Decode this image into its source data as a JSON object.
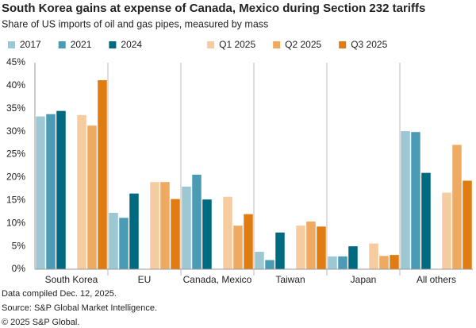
{
  "chart_data": {
    "type": "bar",
    "title": "South Korea gains at expense of Canada, Mexico during Section 232 tariffs",
    "subtitle": "Share of US imports of oil and gas pipes, measured by mass",
    "categories": [
      "South Korea",
      "EU",
      "Canada, Mexico",
      "Taiwan",
      "Japan",
      "All others"
    ],
    "series": [
      {
        "name": "2017",
        "color": "#9cc7d3",
        "values": [
          33.3,
          12.3,
          18.0,
          3.8,
          2.8,
          30.1
        ]
      },
      {
        "name": "2021",
        "color": "#4a9bb3",
        "values": [
          33.8,
          11.2,
          20.6,
          2.0,
          2.8,
          29.9
        ]
      },
      {
        "name": "2024",
        "color": "#006b80",
        "values": [
          34.5,
          16.5,
          15.2,
          8.0,
          5.0,
          21.0
        ]
      },
      {
        "name": "Q1 2025",
        "color": "#f5cb9f",
        "values": [
          33.6,
          19.0,
          15.8,
          9.5,
          5.6,
          16.7
        ]
      },
      {
        "name": "Q2 2025",
        "color": "#eeaa60",
        "values": [
          31.3,
          19.0,
          9.5,
          10.4,
          2.9,
          27.1
        ]
      },
      {
        "name": "Q3 2025",
        "color": "#e07c12",
        "values": [
          41.2,
          15.3,
          12.0,
          9.3,
          3.1,
          19.3
        ]
      }
    ],
    "ylim": [
      0,
      45
    ],
    "yticks": [
      {
        "value": 0,
        "label": "0%"
      },
      {
        "value": 5,
        "label": "5%"
      },
      {
        "value": 10,
        "label": "10%"
      },
      {
        "value": 15,
        "label": "15%"
      },
      {
        "value": 20,
        "label": "20%"
      },
      {
        "value": 25,
        "label": "25%"
      },
      {
        "value": 30,
        "label": "30%"
      },
      {
        "value": 35,
        "label": "35%"
      },
      {
        "value": 40,
        "label": "40%"
      },
      {
        "value": 45,
        "label": "45%"
      }
    ],
    "grid": false,
    "footnotes": [
      "Data compiled Dec. 12, 2025.",
      "Source: S&P Global Market Intelligence.",
      "© 2025 S&P Global."
    ]
  }
}
